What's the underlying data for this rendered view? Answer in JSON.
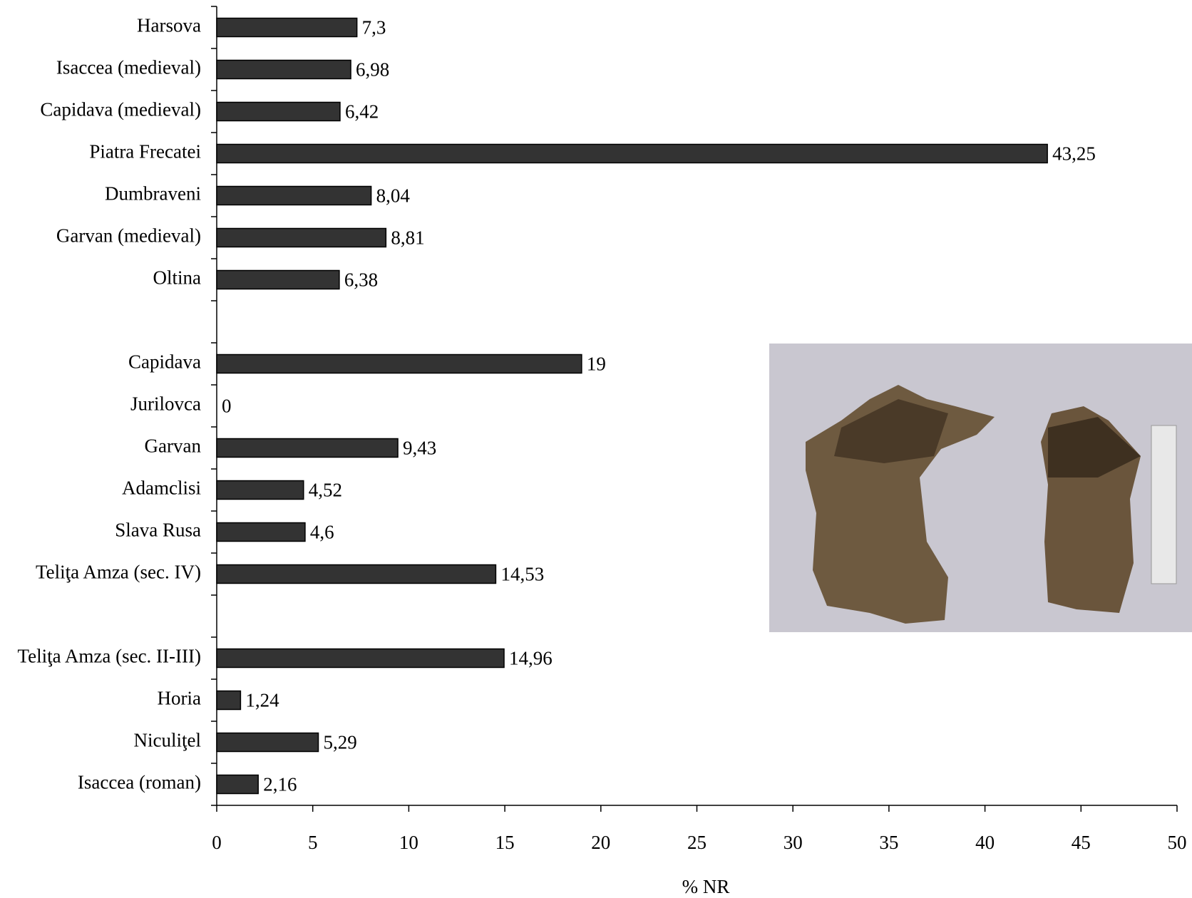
{
  "chart_data": {
    "type": "bar",
    "orientation": "horizontal",
    "x_label": "% NR",
    "categories": [
      "Harsova",
      "Isaccea (medieval)",
      "Capidava (medieval)",
      "Piatra Frecatei",
      "Dumbraveni",
      "Garvan (medieval)",
      "Oltina",
      null,
      "Capidava",
      "Jurilovca",
      "Garvan",
      "Adamclisi",
      "Slava Rusa",
      "Teliţa Amza (sec. IV)",
      null,
      "Teliţa Amza (sec. II-III)",
      "Horia",
      "Niculiţel",
      "Isaccea (roman)"
    ],
    "values": [
      7.3,
      6.98,
      6.42,
      43.25,
      8.04,
      8.81,
      6.38,
      null,
      19,
      0,
      9.43,
      4.52,
      4.6,
      14.53,
      null,
      14.96,
      1.24,
      5.29,
      2.16
    ],
    "value_labels": [
      "7,3",
      "6,98",
      "6,42",
      "43,25",
      "8,04",
      "8,81",
      "6,38",
      null,
      "19",
      "0",
      "9,43",
      "4,52",
      "4,6",
      "14,53",
      null,
      "14,96",
      "1,24",
      "5,29",
      "2,16"
    ],
    "color": "#333333",
    "xlim": [
      0,
      50
    ],
    "xticks": [
      0,
      5,
      10,
      15,
      20,
      25,
      30,
      35,
      40,
      45,
      50
    ],
    "grid": false
  }
}
